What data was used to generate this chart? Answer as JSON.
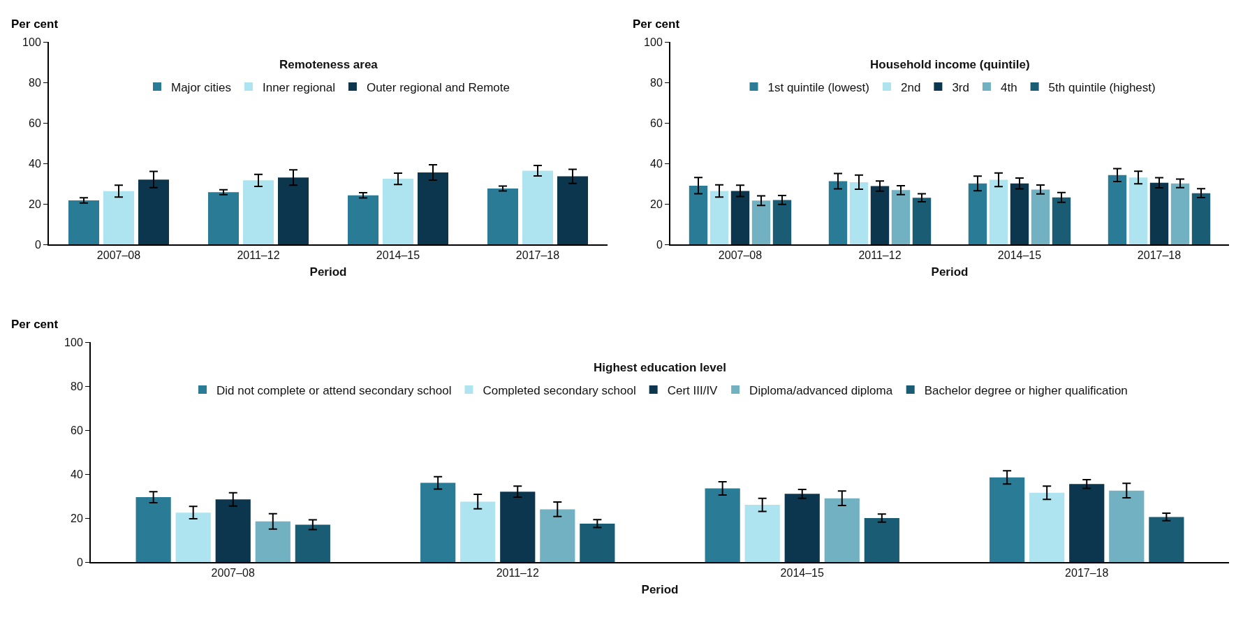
{
  "chart_data": [
    {
      "type": "bar",
      "ylabel": "Per cent",
      "xlabel": "Period",
      "legend_title": "Remoteness area",
      "categories": [
        "2007–08",
        "2011–12",
        "2014–15",
        "2017–18"
      ],
      "ylim": [
        0,
        100
      ],
      "yticks": [
        0,
        20,
        40,
        60,
        80,
        100
      ],
      "grid": false,
      "legend": "top",
      "series": [
        {
          "name": "Major cities",
          "color": "#2a7b96",
          "values": [
            21.7,
            25.8,
            24.2,
            27.6
          ],
          "errors": [
            1.3,
            1.2,
            1.3,
            1.2
          ]
        },
        {
          "name": "Inner regional",
          "color": "#ade4ef",
          "values": [
            26.3,
            31.6,
            32.4,
            36.4
          ],
          "errors": [
            2.9,
            3,
            2.8,
            2.6
          ]
        },
        {
          "name": "Outer regional and Remote",
          "color": "#0b364d",
          "values": [
            32,
            33,
            35.5,
            33.6
          ],
          "errors": [
            4,
            3.8,
            3.8,
            3.5
          ]
        }
      ]
    },
    {
      "type": "bar",
      "ylabel": "Per cent",
      "xlabel": "Period",
      "legend_title": "Household income (quintile)",
      "categories": [
        "2007–08",
        "2011–12",
        "2014–15",
        "2017–18"
      ],
      "ylim": [
        0,
        100
      ],
      "yticks": [
        0,
        20,
        40,
        60,
        80,
        100
      ],
      "grid": false,
      "legend": "top",
      "series": [
        {
          "name": "1st quintile (lowest)",
          "color": "#2a7b96",
          "values": [
            29,
            31.2,
            30.1,
            34.2
          ],
          "errors": [
            4,
            3.8,
            3.6,
            3.2
          ]
        },
        {
          "name": "2nd",
          "color": "#ade4ef",
          "values": [
            26.4,
            30.7,
            31.9,
            33
          ],
          "errors": [
            3,
            3.5,
            3.4,
            3.1
          ]
        },
        {
          "name": "3rd",
          "color": "#0b364d",
          "values": [
            26.4,
            28.8,
            30.1,
            30.4
          ],
          "errors": [
            2.8,
            2.5,
            2.7,
            2.5
          ]
        },
        {
          "name": "4th",
          "color": "#72b1c2",
          "values": [
            21.6,
            26.8,
            27.1,
            30.1
          ],
          "errors": [
            2.4,
            2.2,
            2.2,
            2.1
          ]
        },
        {
          "name": "5th quintile (highest)",
          "color": "#1a5c73",
          "values": [
            21.9,
            23,
            23.2,
            25.3
          ],
          "errors": [
            2.2,
            2,
            2.4,
            2.2
          ]
        }
      ]
    },
    {
      "type": "bar",
      "ylabel": "Per cent",
      "xlabel": "Period",
      "legend_title": "Highest education level",
      "categories": [
        "2007–08",
        "2011–12",
        "2014–15",
        "2017–18"
      ],
      "ylim": [
        0,
        100
      ],
      "yticks": [
        0,
        20,
        40,
        60,
        80,
        100
      ],
      "grid": false,
      "legend": "top",
      "series": [
        {
          "name": "Did not complete or attend secondary school",
          "color": "#2a7b96",
          "values": [
            29.5,
            36,
            33.5,
            38.5
          ],
          "errors": [
            2.5,
            2.8,
            3,
            3
          ]
        },
        {
          "name": "Completed secondary school",
          "color": "#ade4ef",
          "values": [
            22.5,
            27.5,
            26,
            31.5
          ],
          "errors": [
            2.8,
            3.3,
            3,
            3
          ]
        },
        {
          "name": "Cert III/IV",
          "color": "#0b364d",
          "values": [
            28.5,
            32,
            31,
            35.5
          ],
          "errors": [
            3,
            2.5,
            2,
            2
          ]
        },
        {
          "name": "Diploma/advanced diploma",
          "color": "#72b1c2",
          "values": [
            18.5,
            24,
            29,
            32.5
          ],
          "errors": [
            3.5,
            3.3,
            3.3,
            3.3
          ]
        },
        {
          "name": "Bachelor degree or higher qualification",
          "color": "#1a5c73",
          "values": [
            17,
            17.5,
            20,
            20.5
          ],
          "errors": [
            2.2,
            1.8,
            1.8,
            1.7
          ]
        }
      ]
    }
  ]
}
